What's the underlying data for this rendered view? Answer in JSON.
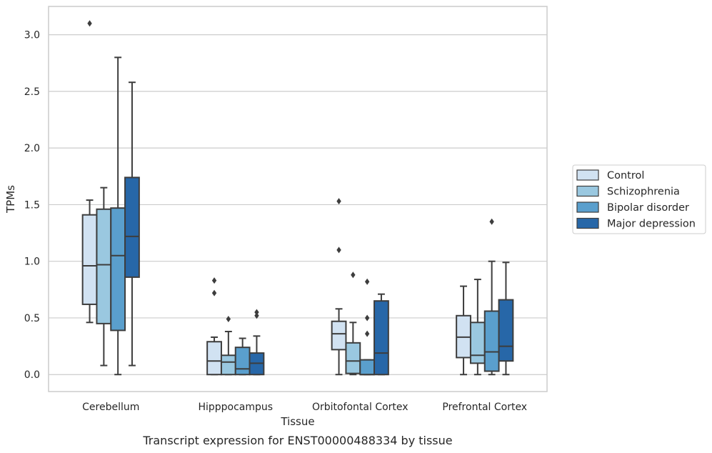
{
  "chart_data": {
    "type": "box",
    "xlabel": "Tissue",
    "ylabel": "TPMs",
    "caption": "Transcript expression for ENST00000488334 by tissue",
    "ylim": [
      -0.15,
      3.25
    ],
    "yticks": [
      "0.0",
      "0.5",
      "1.0",
      "1.5",
      "2.0",
      "2.5",
      "3.0"
    ],
    "grid": "horizontal",
    "legend_position": "right",
    "categories": [
      "Cerebellum",
      "Hipppocampus",
      "Orbitofontal Cortex",
      "Prefrontal Cortex"
    ],
    "series": [
      {
        "name": "Control",
        "color": "#d1e2f2",
        "boxes": [
          {
            "whislo": 0.46,
            "q1": 0.62,
            "med": 0.96,
            "q3": 1.41,
            "whishi": 1.54,
            "fliers": [
              3.1
            ]
          },
          {
            "whislo": 0.0,
            "q1": 0.0,
            "med": 0.12,
            "q3": 0.29,
            "whishi": 0.33,
            "fliers": [
              0.72,
              0.83
            ]
          },
          {
            "whislo": 0.0,
            "q1": 0.22,
            "med": 0.36,
            "q3": 0.47,
            "whishi": 0.58,
            "fliers": [
              1.1,
              1.53
            ]
          },
          {
            "whislo": 0.0,
            "q1": 0.15,
            "med": 0.33,
            "q3": 0.52,
            "whishi": 0.78,
            "fliers": []
          }
        ]
      },
      {
        "name": "Schizophrenia",
        "color": "#9ac8e0",
        "boxes": [
          {
            "whislo": 0.08,
            "q1": 0.45,
            "med": 0.97,
            "q3": 1.46,
            "whishi": 1.65,
            "fliers": []
          },
          {
            "whislo": 0.0,
            "q1": 0.0,
            "med": 0.11,
            "q3": 0.17,
            "whishi": 0.38,
            "fliers": [
              0.49
            ]
          },
          {
            "whislo": 0.0,
            "q1": 0.01,
            "med": 0.12,
            "q3": 0.28,
            "whishi": 0.46,
            "fliers": [
              0.88
            ]
          },
          {
            "whislo": 0.0,
            "q1": 0.1,
            "med": 0.17,
            "q3": 0.46,
            "whishi": 0.84,
            "fliers": []
          }
        ]
      },
      {
        "name": "Bipolar disorder",
        "color": "#5a9fcd",
        "boxes": [
          {
            "whislo": 0.0,
            "q1": 0.39,
            "med": 1.05,
            "q3": 1.47,
            "whishi": 2.8,
            "fliers": []
          },
          {
            "whislo": 0.0,
            "q1": 0.0,
            "med": 0.05,
            "q3": 0.24,
            "whishi": 0.32,
            "fliers": []
          },
          {
            "whislo": 0.0,
            "q1": 0.0,
            "med": 0.0,
            "q3": 0.13,
            "whishi": 0.13,
            "fliers": [
              0.36,
              0.5,
              0.82
            ]
          },
          {
            "whislo": 0.0,
            "q1": 0.03,
            "med": 0.2,
            "q3": 0.56,
            "whishi": 1.0,
            "fliers": [
              1.35
            ]
          }
        ]
      },
      {
        "name": "Major depression",
        "color": "#2767a8",
        "boxes": [
          {
            "whislo": 0.08,
            "q1": 0.86,
            "med": 1.22,
            "q3": 1.74,
            "whishi": 2.58,
            "fliers": []
          },
          {
            "whislo": 0.0,
            "q1": 0.0,
            "med": 0.1,
            "q3": 0.19,
            "whishi": 0.34,
            "fliers": [
              0.52,
              0.55
            ]
          },
          {
            "whislo": 0.0,
            "q1": 0.0,
            "med": 0.19,
            "q3": 0.65,
            "whishi": 0.71,
            "fliers": []
          },
          {
            "whislo": 0.0,
            "q1": 0.12,
            "med": 0.25,
            "q3": 0.66,
            "whishi": 0.99,
            "fliers": []
          }
        ]
      }
    ]
  }
}
